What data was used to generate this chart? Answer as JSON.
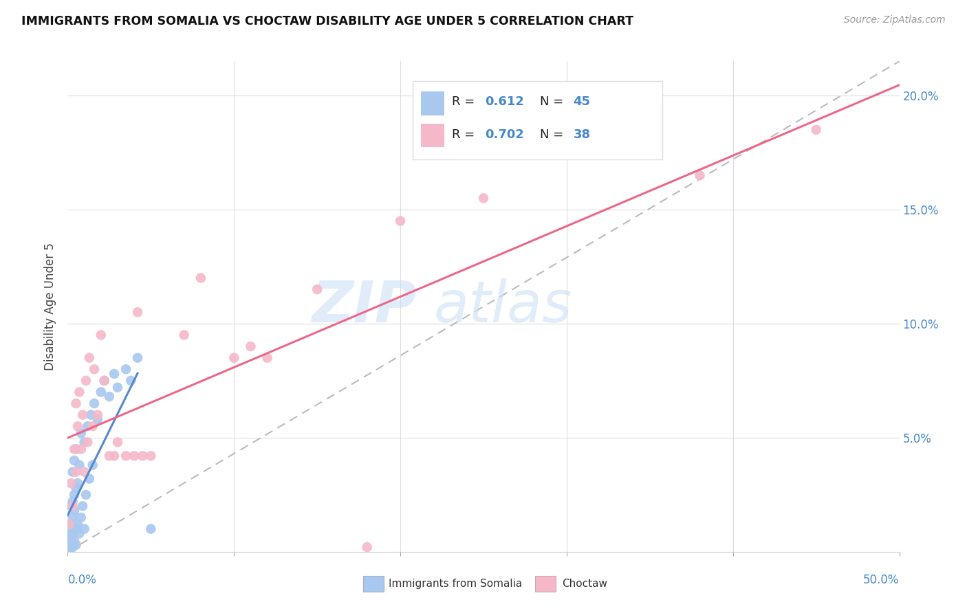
{
  "title": "IMMIGRANTS FROM SOMALIA VS CHOCTAW DISABILITY AGE UNDER 5 CORRELATION CHART",
  "source": "Source: ZipAtlas.com",
  "ylabel": "Disability Age Under 5",
  "color_somalia": "#a8c8f0",
  "color_choctaw": "#f5b8c8",
  "color_somalia_line": "#5588cc",
  "color_choctaw_line": "#ee6688",
  "color_diagonal": "#bbbbbb",
  "xlim": [
    0,
    0.5
  ],
  "ylim": [
    0,
    0.215
  ],
  "somalia_x": [
    0.0005,
    0.001,
    0.001,
    0.0015,
    0.002,
    0.002,
    0.002,
    0.0025,
    0.003,
    0.003,
    0.003,
    0.003,
    0.004,
    0.004,
    0.004,
    0.004,
    0.005,
    0.005,
    0.005,
    0.005,
    0.006,
    0.006,
    0.007,
    0.007,
    0.008,
    0.008,
    0.009,
    0.01,
    0.01,
    0.011,
    0.012,
    0.013,
    0.014,
    0.015,
    0.016,
    0.018,
    0.02,
    0.022,
    0.025,
    0.028,
    0.03,
    0.035,
    0.038,
    0.042,
    0.05
  ],
  "somalia_y": [
    0.005,
    0.001,
    0.01,
    0.003,
    0.006,
    0.012,
    0.02,
    0.008,
    0.002,
    0.015,
    0.022,
    0.035,
    0.005,
    0.018,
    0.025,
    0.04,
    0.003,
    0.01,
    0.028,
    0.045,
    0.012,
    0.03,
    0.008,
    0.038,
    0.015,
    0.052,
    0.02,
    0.01,
    0.048,
    0.025,
    0.055,
    0.032,
    0.06,
    0.038,
    0.065,
    0.058,
    0.07,
    0.075,
    0.068,
    0.078,
    0.072,
    0.08,
    0.075,
    0.085,
    0.01
  ],
  "choctaw_x": [
    0.001,
    0.002,
    0.003,
    0.004,
    0.005,
    0.005,
    0.006,
    0.007,
    0.008,
    0.009,
    0.01,
    0.011,
    0.012,
    0.013,
    0.015,
    0.016,
    0.018,
    0.02,
    0.022,
    0.025,
    0.028,
    0.03,
    0.035,
    0.04,
    0.042,
    0.045,
    0.05,
    0.07,
    0.08,
    0.1,
    0.11,
    0.12,
    0.15,
    0.18,
    0.2,
    0.25,
    0.38,
    0.45
  ],
  "choctaw_y": [
    0.012,
    0.03,
    0.02,
    0.045,
    0.035,
    0.065,
    0.055,
    0.07,
    0.045,
    0.06,
    0.035,
    0.075,
    0.048,
    0.085,
    0.055,
    0.08,
    0.06,
    0.095,
    0.075,
    0.042,
    0.042,
    0.048,
    0.042,
    0.042,
    0.105,
    0.042,
    0.042,
    0.095,
    0.12,
    0.085,
    0.09,
    0.085,
    0.115,
    0.002,
    0.145,
    0.155,
    0.165,
    0.185
  ]
}
